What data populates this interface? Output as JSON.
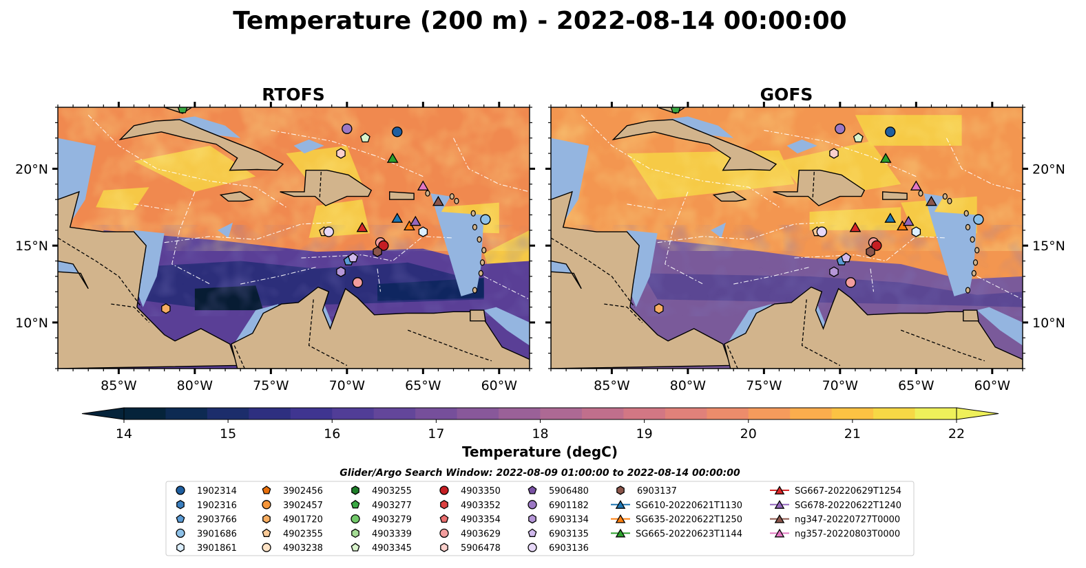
{
  "figure": {
    "title": "Temperature (200 m) - 2022-08-14 00:00:00",
    "search_window": "Glider/Argo Search Window: 2022-08-09 01:00:00 to 2022-08-14 00:00:00"
  },
  "panels": [
    {
      "title": "RTOFS",
      "model": "rtofs"
    },
    {
      "title": "GOFS",
      "model": "gofs"
    }
  ],
  "map_extent": {
    "lon_min": -89,
    "lon_max": -58,
    "lat_min": 7,
    "lat_max": 24
  },
  "axes": {
    "x_ticks": [
      {
        "lon": -85,
        "label": "85°W"
      },
      {
        "lon": -80,
        "label": "80°W"
      },
      {
        "lon": -75,
        "label": "75°W"
      },
      {
        "lon": -70,
        "label": "70°W"
      },
      {
        "lon": -65,
        "label": "65°W"
      },
      {
        "lon": -60,
        "label": "60°W"
      }
    ],
    "y_ticks": [
      {
        "lat": 10,
        "label": "10°N"
      },
      {
        "lat": 15,
        "label": "15°N"
      },
      {
        "lat": 20,
        "label": "20°N"
      }
    ]
  },
  "colorbar": {
    "label": "Temperature (degC)",
    "min": 14,
    "max": 22,
    "step": 0.5,
    "extend": "both",
    "ticks": [
      {
        "value": 14,
        "label": "14"
      },
      {
        "value": 15,
        "label": "15"
      },
      {
        "value": 16,
        "label": "16"
      },
      {
        "value": 17,
        "label": "17"
      },
      {
        "value": 18,
        "label": "18"
      },
      {
        "value": 19,
        "label": "19"
      },
      {
        "value": 20,
        "label": "20"
      },
      {
        "value": 21,
        "label": "21"
      },
      {
        "value": 22,
        "label": "22"
      }
    ],
    "colors": [
      "#05233a",
      "#0d2a52",
      "#1c2d6b",
      "#2e2f80",
      "#3f3590",
      "#513d97",
      "#63469a",
      "#764f9b",
      "#88589a",
      "#9a6198",
      "#ad6994",
      "#c06f8c",
      "#d27784",
      "#e0817a",
      "#ec8c6b",
      "#f59b5c",
      "#fbad4d",
      "#fcc243",
      "#f6d845",
      "#eef05a"
    ],
    "under_color": "#05233a",
    "over_color": "#eef05a"
  },
  "colors": {
    "land": "#d2b48c",
    "shelf_water": "#94b5e0",
    "outside_domain": "#05233a",
    "eez": "#ffffff",
    "border": "#000000"
  },
  "legend": {
    "columns": [
      [
        {
          "label": "1902314",
          "marker": "circle",
          "color": "#1f5fa0"
        },
        {
          "label": "1902316",
          "marker": "hexagon",
          "color": "#3b7fbf"
        },
        {
          "label": "2903766",
          "marker": "pentagon",
          "color": "#5b9bd5"
        },
        {
          "label": "3901686",
          "marker": "circle",
          "color": "#8ec1e8"
        },
        {
          "label": "3901861",
          "marker": "hexagon",
          "color": "#dcefff"
        }
      ],
      [
        {
          "label": "3902456",
          "marker": "pentagon",
          "color": "#e8700d"
        },
        {
          "label": "3902457",
          "marker": "circle",
          "color": "#f5963a"
        },
        {
          "label": "4901720",
          "marker": "hexagon",
          "color": "#f8ae62"
        },
        {
          "label": "4902355",
          "marker": "pentagon",
          "color": "#fbcb98"
        },
        {
          "label": "4903238",
          "marker": "circle",
          "color": "#fde3c6"
        }
      ],
      [
        {
          "label": "4903255",
          "marker": "hexagon",
          "color": "#1f7f2a"
        },
        {
          "label": "4903277",
          "marker": "pentagon",
          "color": "#3aa843"
        },
        {
          "label": "4903279",
          "marker": "circle",
          "color": "#72c96a"
        },
        {
          "label": "4903339",
          "marker": "hexagon",
          "color": "#a5dd95"
        },
        {
          "label": "4903345",
          "marker": "pentagon",
          "color": "#d9f3cc"
        }
      ],
      [
        {
          "label": "4903350",
          "marker": "circle",
          "color": "#c51e23"
        },
        {
          "label": "4903352",
          "marker": "hexagon",
          "color": "#dd4141"
        },
        {
          "label": "4903354",
          "marker": "pentagon",
          "color": "#ea6f6f"
        },
        {
          "label": "4903629",
          "marker": "circle",
          "color": "#f29d9d"
        },
        {
          "label": "5906478",
          "marker": "hexagon",
          "color": "#fbd0cc"
        }
      ],
      [
        {
          "label": "5906480",
          "marker": "pentagon",
          "color": "#7a52a5"
        },
        {
          "label": "6901182",
          "marker": "circle",
          "color": "#9c78c4"
        },
        {
          "label": "6903134",
          "marker": "hexagon",
          "color": "#b697d8"
        },
        {
          "label": "6903135",
          "marker": "pentagon",
          "color": "#d0b9ec"
        },
        {
          "label": "6903136",
          "marker": "circle",
          "color": "#e7d8f8"
        }
      ],
      [
        {
          "label": "6903137",
          "marker": "hexagon",
          "color": "#8c564b"
        },
        {
          "label": "SG610-20220621T1130",
          "marker": "triangle-line",
          "color": "#1f77b4"
        },
        {
          "label": "SG635-20220622T1250",
          "marker": "triangle-line",
          "color": "#ff7f0e"
        },
        {
          "label": "SG665-20220623T1144",
          "marker": "triangle-line",
          "color": "#2ca02c"
        }
      ],
      [
        {
          "label": "SG667-20220629T1254",
          "marker": "triangle-line",
          "color": "#d62728"
        },
        {
          "label": "SG678-20220622T1240",
          "marker": "triangle-line",
          "color": "#9467bd"
        },
        {
          "label": "ng347-20220727T0000",
          "marker": "triangle-line",
          "color": "#8c564b"
        },
        {
          "label": "ng357-20220803T0000",
          "marker": "triangle-line",
          "color": "#e377c2"
        }
      ]
    ]
  },
  "platform_positions": [
    {
      "label": "1902314",
      "marker": "circle",
      "color": "#1f5fa0",
      "lon": -66.7,
      "lat": 22.4
    },
    {
      "label": "6901182",
      "marker": "circle",
      "color": "#9c78c4",
      "lon": -70.0,
      "lat": 22.6
    },
    {
      "label": "4903345",
      "marker": "pentagon",
      "color": "#d9f3cc",
      "lon": -68.8,
      "lat": 22.0
    },
    {
      "label": "5906478",
      "marker": "hexagon",
      "color": "#fbd0cc",
      "lon": -70.4,
      "lat": 21.0
    },
    {
      "label": "SG665-20220623T1144",
      "marker": "triangle",
      "color": "#2ca02c",
      "lon": -67.0,
      "lat": 20.7
    },
    {
      "label": "ng357-20220803T0000",
      "marker": "triangle",
      "color": "#e377c2",
      "lon": -65.0,
      "lat": 18.9
    },
    {
      "label": "ng347-20220727T0000",
      "marker": "triangle",
      "color": "#8c564b",
      "lon": -64.0,
      "lat": 17.9
    },
    {
      "label": "SG610-20220621T1130",
      "marker": "triangle",
      "color": "#1f77b4",
      "lon": -66.7,
      "lat": 16.8
    },
    {
      "label": "SG635-20220622T1250",
      "marker": "triangle",
      "color": "#ff7f0e",
      "lon": -65.9,
      "lat": 16.3
    },
    {
      "label": "SG678-20220622T1240",
      "marker": "triangle",
      "color": "#9467bd",
      "lon": -65.5,
      "lat": 16.6
    },
    {
      "label": "3901861",
      "marker": "hexagon",
      "color": "#dcefff",
      "lon": -65.0,
      "lat": 15.9
    },
    {
      "label": "3901686",
      "marker": "circle",
      "color": "#8ec1e8",
      "lon": -60.9,
      "lat": 16.7
    },
    {
      "label": "SG667-20220629T1254",
      "marker": "triangle",
      "color": "#d62728",
      "lon": -69.0,
      "lat": 16.2
    },
    {
      "label": "4902355",
      "marker": "pentagon",
      "color": "#fbcb98",
      "lon": -71.5,
      "lat": 15.9
    },
    {
      "label": "6903136",
      "marker": "circle",
      "color": "#e7d8f8",
      "lon": -71.2,
      "lat": 15.9
    },
    {
      "label": "4903629",
      "marker": "circle",
      "color": "#f29d9d",
      "lon": -67.8,
      "lat": 15.2
    },
    {
      "label": "4903350",
      "marker": "circle",
      "color": "#c51e23",
      "lon": -67.6,
      "lat": 15.0
    },
    {
      "label": "6903137",
      "marker": "hexagon",
      "color": "#8c564b",
      "lon": -68.0,
      "lat": 14.6
    },
    {
      "label": "2903766",
      "marker": "pentagon",
      "color": "#5b9bd5",
      "lon": -69.9,
      "lat": 14.0
    },
    {
      "label": "6903135",
      "marker": "pentagon",
      "color": "#d0b9ec",
      "lon": -69.6,
      "lat": 14.2
    },
    {
      "label": "6903134",
      "marker": "hexagon",
      "color": "#b697d8",
      "lon": -70.4,
      "lat": 13.3
    },
    {
      "label": "4903629",
      "marker": "circle",
      "color": "#f29d9d",
      "lon": -69.3,
      "lat": 12.6
    },
    {
      "label": "4901720",
      "marker": "hexagon",
      "color": "#f8ae62",
      "lon": -81.9,
      "lat": 10.9
    },
    {
      "label": "4903277",
      "marker": "pentagon",
      "color": "#3aa843",
      "lon": -80.8,
      "lat": 23.9
    }
  ]
}
